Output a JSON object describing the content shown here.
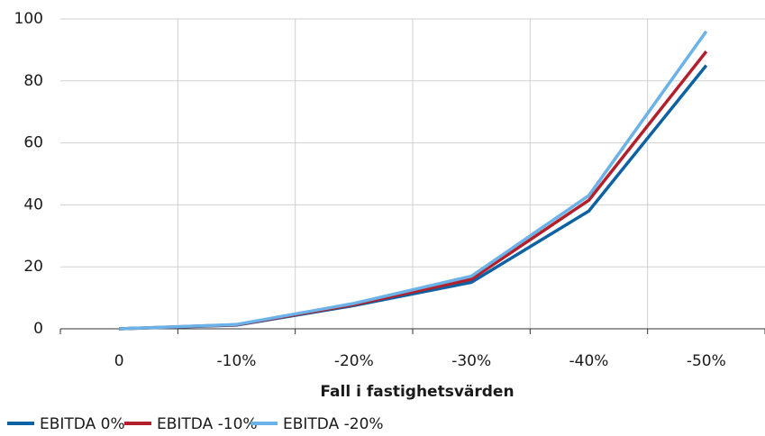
{
  "chart_data": {
    "type": "line",
    "x_label": "Fall i fastighetsvärden",
    "categories": [
      "0",
      "-10%",
      "-20%",
      "-30%",
      "-40%",
      "-50%"
    ],
    "series": [
      {
        "name": "EBITDA 0%",
        "color": "#0e62a4",
        "values": [
          0,
          1.2,
          7.5,
          15,
          38,
          85
        ]
      },
      {
        "name": "EBITDA -10%",
        "color": "#b3202c",
        "values": [
          0,
          1.3,
          7.8,
          16,
          41.5,
          89.5
        ]
      },
      {
        "name": "EBITDA -20%",
        "color": "#6ab2e7",
        "values": [
          0,
          1.4,
          8.2,
          17,
          43,
          96
        ]
      }
    ],
    "ylim": [
      0,
      100
    ],
    "yticks": [
      0,
      20,
      40,
      60,
      80,
      100
    ],
    "grid": true,
    "legend": "bottom-left"
  }
}
